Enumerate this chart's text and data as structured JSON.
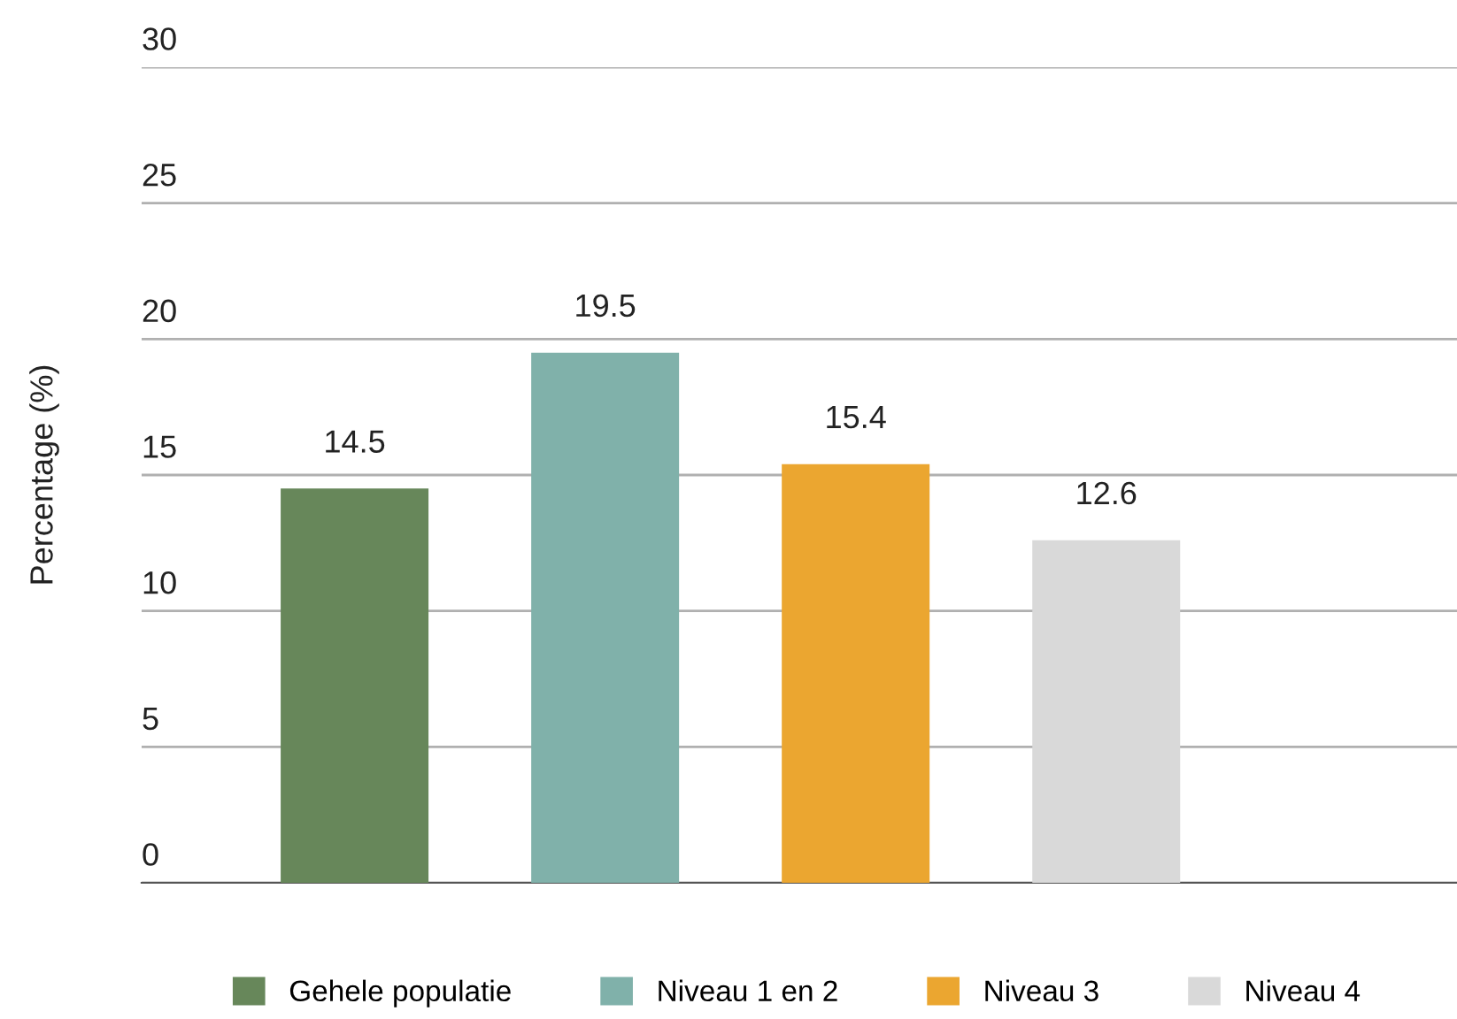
{
  "chart_data": {
    "type": "bar",
    "ylabel": "Percentage (%)",
    "categories": [
      null
    ],
    "series": [
      {
        "name": "Gehele populatie",
        "color": "#67875a",
        "values": [
          14.5
        ]
      },
      {
        "name": "Niveau 1 en 2",
        "color": "#80b1aa",
        "values": [
          19.5
        ]
      },
      {
        "name": "Niveau 3",
        "color": "#eba630",
        "values": [
          15.4
        ]
      },
      {
        "name": "Niveau 4",
        "color": "#d9d9d9",
        "values": [
          12.6
        ]
      }
    ],
    "ylim": [
      0,
      30
    ],
    "yticks": [
      0,
      5,
      10,
      15,
      20,
      25,
      30
    ],
    "grid": "y",
    "data_labels": true,
    "legend": "bottom",
    "tick_labels": "y"
  }
}
